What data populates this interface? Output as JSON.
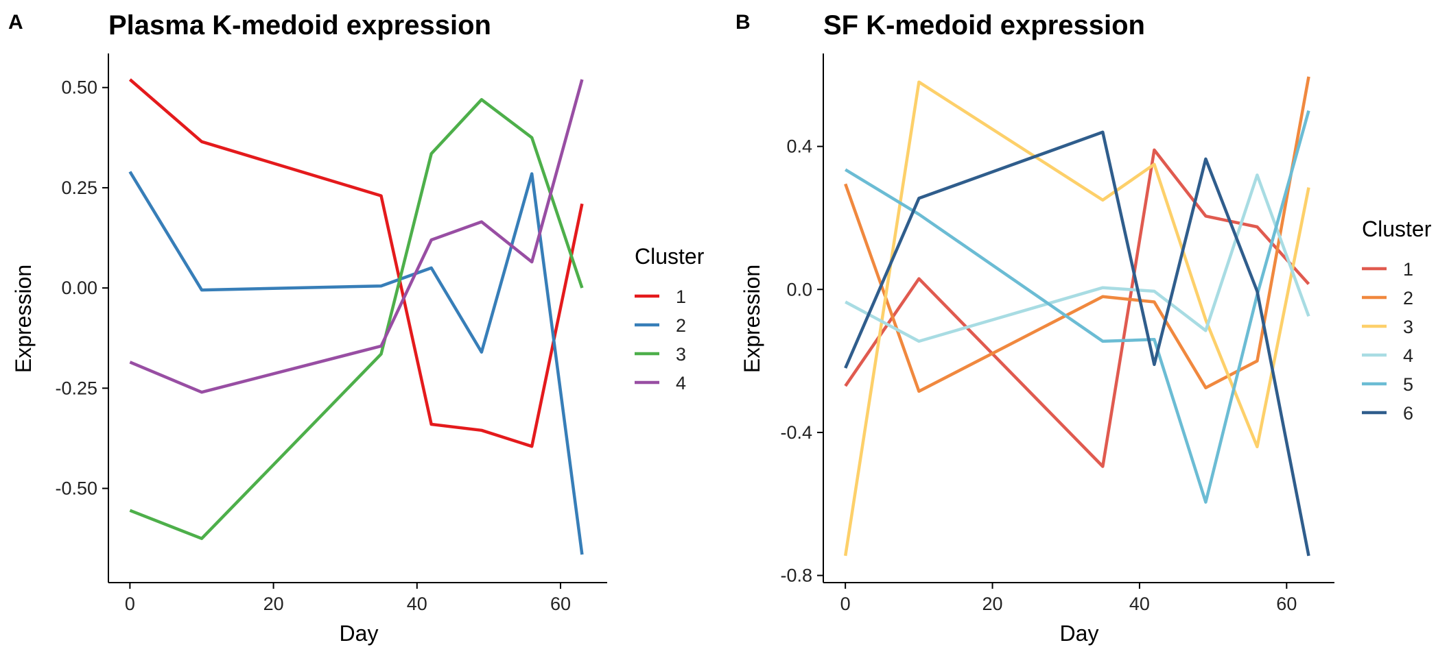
{
  "chart_data": [
    {
      "type": "line",
      "panel_tag": "A",
      "title": "Plasma K-medoid expression",
      "xlabel": "Day",
      "ylabel": "Expression",
      "x": [
        0,
        10,
        35,
        42,
        49,
        56,
        63
      ],
      "xlim": [
        -3,
        66.5
      ],
      "ylim": [
        -0.735,
        0.585
      ],
      "xticks": [
        0,
        20,
        40,
        60
      ],
      "yticks": [
        -0.5,
        -0.25,
        0,
        0.25,
        0.5
      ],
      "ytick_labels": [
        "-0.50",
        "-0.25",
        "0.00",
        "0.25",
        "0.50"
      ],
      "grid": false,
      "legend": {
        "title": "Cluster",
        "position": "right"
      },
      "series": [
        {
          "name": "1",
          "color": "#E41A1C",
          "values": [
            0.52,
            0.365,
            0.23,
            -0.34,
            -0.355,
            -0.395,
            0.21
          ]
        },
        {
          "name": "2",
          "color": "#377EB8",
          "values": [
            0.29,
            -0.005,
            0.005,
            0.05,
            -0.16,
            0.285,
            -0.665
          ]
        },
        {
          "name": "3",
          "color": "#4DAF4A",
          "values": [
            -0.555,
            -0.625,
            -0.165,
            0.335,
            0.47,
            0.375,
            0.0
          ]
        },
        {
          "name": "4",
          "color": "#984EA3",
          "values": [
            -0.185,
            -0.26,
            -0.145,
            0.12,
            0.165,
            0.065,
            0.52
          ]
        }
      ]
    },
    {
      "type": "line",
      "panel_tag": "B",
      "title": "SF K-medoid expression",
      "xlabel": "Day",
      "ylabel": "Expression",
      "x": [
        0,
        10,
        35,
        42,
        49,
        56,
        63
      ],
      "xlim": [
        -3,
        66.5
      ],
      "ylim": [
        -0.82,
        0.66
      ],
      "xticks": [
        0,
        20,
        40,
        60
      ],
      "yticks": [
        -0.8,
        -0.4,
        0,
        0.4
      ],
      "ytick_labels": [
        "-0.8",
        "-0.4",
        "0.0",
        "0.4"
      ],
      "grid": false,
      "legend": {
        "title": "Cluster",
        "position": "right"
      },
      "series": [
        {
          "name": "1",
          "color": "#E05A4F",
          "values": [
            -0.27,
            0.03,
            -0.495,
            0.39,
            0.205,
            0.175,
            0.015
          ]
        },
        {
          "name": "2",
          "color": "#F0883E",
          "values": [
            0.295,
            -0.285,
            -0.02,
            -0.035,
            -0.275,
            -0.2,
            0.595
          ]
        },
        {
          "name": "3",
          "color": "#FDD06A",
          "values": [
            -0.745,
            0.58,
            0.25,
            0.35,
            -0.085,
            -0.44,
            0.285
          ]
        },
        {
          "name": "4",
          "color": "#A8DCE3",
          "values": [
            -0.035,
            -0.145,
            0.005,
            -0.005,
            -0.115,
            0.32,
            -0.075
          ]
        },
        {
          "name": "5",
          "color": "#6BBCD4",
          "values": [
            0.335,
            0.21,
            -0.145,
            -0.14,
            -0.595,
            -0.015,
            0.5
          ]
        },
        {
          "name": "6",
          "color": "#2F5D8C",
          "values": [
            -0.22,
            0.255,
            0.44,
            -0.21,
            0.365,
            -0.005,
            -0.745
          ]
        }
      ]
    }
  ]
}
